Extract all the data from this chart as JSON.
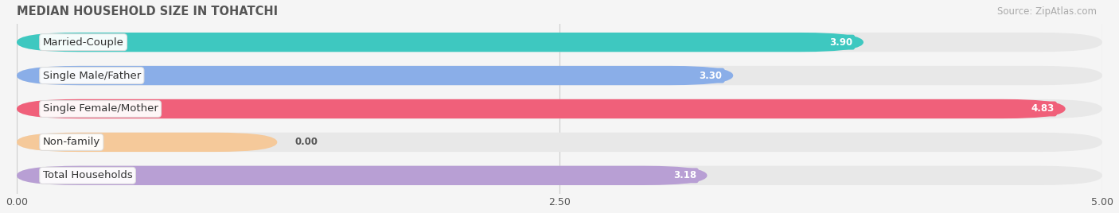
{
  "title": "MEDIAN HOUSEHOLD SIZE IN TOHATCHI",
  "source": "Source: ZipAtlas.com",
  "categories": [
    "Married-Couple",
    "Single Male/Father",
    "Single Female/Mother",
    "Non-family",
    "Total Households"
  ],
  "values": [
    3.9,
    3.3,
    4.83,
    0.0,
    3.18
  ],
  "bar_colors": [
    "#3ec8c0",
    "#8aaee8",
    "#f0607a",
    "#f5c99a",
    "#b89fd4"
  ],
  "xlim": [
    0,
    5.0
  ],
  "xticks": [
    0.0,
    2.5,
    5.0
  ],
  "xtick_labels": [
    "0.00",
    "2.50",
    "5.00"
  ],
  "label_fontsize": 9.5,
  "title_fontsize": 10.5,
  "source_fontsize": 8.5,
  "value_fontsize": 8.5,
  "background_color": "#f5f5f5",
  "bar_bg_color": "#e8e8e8",
  "bar_height": 0.58,
  "non_family_bar_width": 1.2
}
